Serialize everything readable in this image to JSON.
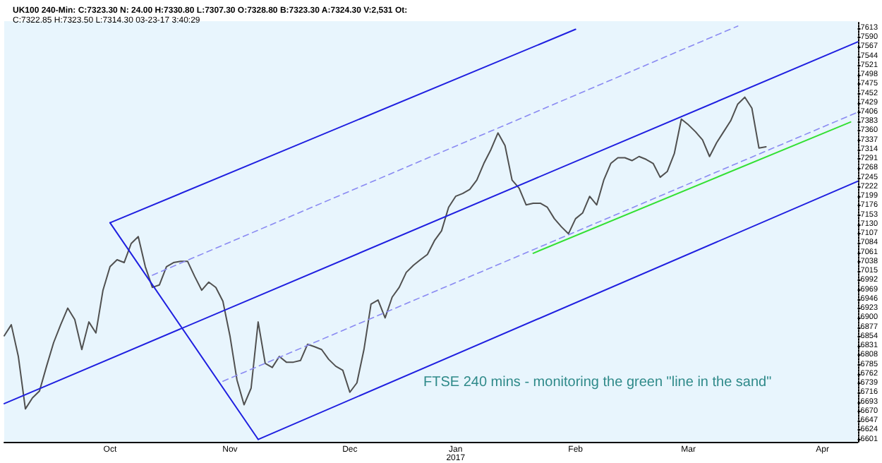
{
  "chart_data": {
    "type": "line",
    "title": "UK100 240-Min: C:7323.30 N: 24.00 H:7330.80 L:7307.30 O:7328.80 B:7323.30 A:7324.30 V:2,531 Ot:",
    "subtitle": "C:7322.85 H:7323.50 L:7314.30 03-23-17 3:40:29",
    "annotations": [
      "FTSE 240 mins - monitoring the green \"line in the sand\""
    ],
    "categories": [
      null,
      null,
      null,
      null,
      null,
      null,
      null,
      null,
      null,
      null,
      null,
      null,
      null,
      null,
      null,
      "Oct",
      null,
      null,
      null,
      null,
      null,
      null,
      null,
      null,
      null,
      null,
      null,
      null,
      null,
      null,
      null,
      null,
      "Nov",
      null,
      null,
      null,
      null,
      null,
      null,
      null,
      null,
      null,
      null,
      null,
      null,
      null,
      null,
      null,
      null,
      "Dec",
      null,
      null,
      null,
      null,
      null,
      null,
      null,
      null,
      null,
      null,
      null,
      null,
      null,
      null,
      "Jan\n2017",
      null,
      null,
      null,
      null,
      null,
      null,
      null,
      null,
      null,
      null,
      null,
      null,
      null,
      null,
      null,
      null,
      "Feb",
      null,
      null,
      null,
      null,
      null,
      null,
      null,
      null,
      null,
      null,
      null,
      null,
      null,
      null,
      null,
      "Mar",
      null,
      null,
      null,
      null,
      null,
      null,
      null,
      null,
      null,
      null,
      null,
      null,
      null,
      null,
      null,
      null,
      null,
      null,
      "Apr",
      null,
      null,
      null,
      null,
      null
    ],
    "series": [
      {
        "color": "#505050",
        "values": [
          6856,
          6883,
          6805,
          6676,
          6703,
          6720,
          6781,
          6839,
          6883,
          6924,
          6896,
          6822,
          6890,
          6863,
          6968,
          7026,
          7043,
          7036,
          7083,
          7100,
          7026,
          6975,
          6981,
          7026,
          7036,
          7039,
          7039,
          7002,
          6968,
          6988,
          6975,
          6941,
          6856,
          6747,
          6686,
          6727,
          6890,
          6788,
          6778,
          6805,
          6791,
          6791,
          6795,
          6835,
          6829,
          6822,
          6798,
          6781,
          6771,
          6717,
          6740,
          6822,
          6934,
          6944,
          6900,
          6951,
          6975,
          7012,
          7029,
          7043,
          7056,
          7090,
          7114,
          7172,
          7199,
          7206,
          7216,
          7239,
          7280,
          7314,
          7355,
          7324,
          7239,
          7219,
          7178,
          7182,
          7182,
          7172,
          7144,
          7124,
          7107,
          7144,
          7158,
          7199,
          7178,
          7239,
          7280,
          7294,
          7294,
          7287,
          7297,
          7290,
          7280,
          7246,
          7260,
          7304,
          7389,
          7375,
          7358,
          7338,
          7297,
          7331,
          7358,
          7385,
          7426,
          7443,
          7416,
          7318,
          7321,
          null,
          null,
          null,
          null,
          null,
          null,
          null,
          null,
          null,
          null,
          null,
          null,
          null
        ]
      },
      {
        "color": "#1f1fe0",
        "values": [
          null,
          null,
          null,
          null,
          null,
          null,
          null,
          null,
          null,
          null,
          null,
          null,
          null,
          null,
          null,
          7134,
          null,
          null,
          null,
          null,
          null,
          null,
          null,
          null,
          null,
          null,
          null,
          null,
          null,
          null,
          null,
          null,
          null,
          null,
          null,
          null,
          null,
          null,
          null,
          null,
          null,
          null,
          null,
          null,
          null,
          null,
          null,
          null,
          null,
          null,
          null,
          null,
          null,
          null,
          null,
          null,
          null,
          null,
          null,
          null,
          null,
          null,
          null,
          null,
          null,
          null,
          null,
          null,
          null,
          null,
          null,
          null,
          null,
          null,
          null,
          null,
          null,
          null,
          null,
          null,
          null,
          7610,
          null,
          null,
          null,
          null,
          null,
          null,
          null,
          null,
          null,
          null,
          null,
          null,
          null,
          null,
          null,
          null,
          null,
          null,
          null,
          null,
          null,
          null,
          null,
          null,
          null,
          null,
          null,
          null,
          null,
          null,
          null,
          null,
          null,
          null,
          null,
          null,
          null,
          null,
          null,
          null
        ]
      },
      {
        "color": "#1f1fe0",
        "values": [
          6689,
          null,
          null,
          null,
          null,
          null,
          null,
          null,
          null,
          null,
          null,
          null,
          null,
          null,
          null,
          null,
          null,
          null,
          null,
          null,
          null,
          null,
          null,
          null,
          null,
          null,
          null,
          null,
          null,
          null,
          null,
          null,
          null,
          null,
          null,
          null,
          null,
          null,
          null,
          null,
          null,
          null,
          null,
          null,
          null,
          null,
          null,
          null,
          null,
          null,
          null,
          null,
          null,
          null,
          null,
          null,
          null,
          null,
          null,
          null,
          null,
          null,
          null,
          null,
          null,
          null,
          null,
          null,
          null,
          null,
          null,
          null,
          null,
          null,
          null,
          null,
          null,
          null,
          null,
          null,
          null,
          null,
          null,
          null,
          null,
          null,
          null,
          null,
          null,
          null,
          null,
          null,
          null,
          null,
          null,
          null,
          null,
          null,
          null,
          null,
          null,
          null,
          null,
          null,
          null,
          null,
          null,
          null,
          null,
          null,
          null,
          null,
          null,
          null,
          null,
          null,
          null,
          null,
          null,
          null,
          null,
          7579
        ]
      },
      {
        "color": "#1f1fe0",
        "values": [
          null,
          null,
          null,
          null,
          null,
          null,
          null,
          null,
          null,
          null,
          null,
          null,
          null,
          null,
          null,
          7134,
          null,
          null,
          null,
          null,
          null,
          null,
          null,
          null,
          null,
          null,
          null,
          null,
          null,
          null,
          null,
          null,
          null,
          null,
          null,
          null,
          6601,
          null,
          null,
          null,
          null,
          null,
          null,
          null,
          null,
          null,
          null,
          null,
          null,
          null,
          null,
          null,
          null,
          null,
          null,
          null,
          null,
          null,
          null,
          null,
          null,
          null,
          null,
          null,
          null,
          null,
          null,
          null,
          null,
          null,
          null,
          null,
          null,
          null,
          null,
          null,
          null,
          null,
          null,
          null,
          null,
          null,
          null,
          null,
          null,
          null,
          null,
          null,
          null,
          null,
          null,
          null,
          null,
          null,
          null,
          null,
          null,
          null,
          null,
          null,
          null,
          null,
          null,
          null,
          null,
          null,
          null,
          null,
          null,
          null,
          null,
          null,
          null,
          null,
          null,
          null,
          null,
          null,
          null,
          null,
          null,
          null
        ]
      },
      {
        "color": "#1f1fe0",
        "values": [
          null,
          null,
          null,
          null,
          null,
          null,
          null,
          null,
          null,
          null,
          null,
          null,
          null,
          null,
          null,
          null,
          null,
          null,
          null,
          null,
          null,
          null,
          null,
          null,
          null,
          null,
          null,
          null,
          null,
          null,
          null,
          null,
          null,
          null,
          null,
          null,
          6601,
          null,
          null,
          null,
          null,
          null,
          null,
          null,
          null,
          null,
          null,
          null,
          null,
          null,
          null,
          null,
          null,
          null,
          null,
          null,
          null,
          null,
          null,
          null,
          null,
          null,
          null,
          null,
          null,
          null,
          null,
          null,
          null,
          null,
          null,
          null,
          null,
          null,
          null,
          null,
          null,
          null,
          null,
          null,
          null,
          null,
          null,
          null,
          null,
          null,
          null,
          null,
          null,
          null,
          null,
          null,
          null,
          null,
          null,
          null,
          null,
          null,
          null,
          null,
          null,
          null,
          null,
          null,
          null,
          null,
          null,
          null,
          null,
          null,
          null,
          null,
          null,
          null,
          null,
          null,
          null,
          null,
          null,
          null,
          null,
          7236
        ]
      },
      {
        "color": "#8a8af2",
        "line_style": "dashed",
        "values": [
          null,
          null,
          null,
          null,
          null,
          null,
          null,
          null,
          null,
          null,
          null,
          null,
          null,
          null,
          null,
          null,
          null,
          null,
          null,
          null,
          null,
          7005,
          null,
          null,
          null,
          null,
          null,
          null,
          null,
          null,
          null,
          null,
          null,
          null,
          null,
          null,
          null,
          null,
          null,
          null,
          null,
          null,
          null,
          null,
          null,
          null,
          null,
          null,
          null,
          null,
          null,
          null,
          null,
          null,
          null,
          null,
          null,
          null,
          null,
          null,
          null,
          null,
          null,
          null,
          null,
          null,
          null,
          null,
          null,
          null,
          null,
          null,
          null,
          null,
          null,
          null,
          null,
          null,
          null,
          null,
          null,
          null,
          null,
          null,
          null,
          null,
          null,
          null,
          null,
          null,
          null,
          null,
          null,
          null,
          null,
          null,
          null,
          null,
          null,
          null,
          null,
          null,
          null,
          null,
          7618,
          null,
          null,
          null,
          null,
          null,
          null,
          null,
          null,
          null,
          null,
          null,
          null,
          null,
          null,
          null,
          null,
          null
        ]
      },
      {
        "color": "#8a8af2",
        "line_style": "dashed",
        "values": [
          null,
          null,
          null,
          null,
          null,
          null,
          null,
          null,
          null,
          null,
          null,
          null,
          null,
          null,
          null,
          null,
          null,
          null,
          null,
          null,
          null,
          null,
          null,
          null,
          null,
          null,
          null,
          null,
          null,
          null,
          null,
          6744,
          null,
          null,
          null,
          null,
          null,
          null,
          null,
          null,
          null,
          null,
          null,
          null,
          null,
          null,
          null,
          null,
          null,
          null,
          null,
          null,
          null,
          null,
          null,
          null,
          null,
          null,
          null,
          null,
          null,
          null,
          null,
          null,
          null,
          null,
          null,
          null,
          null,
          null,
          null,
          null,
          null,
          null,
          null,
          null,
          null,
          null,
          null,
          null,
          null,
          null,
          null,
          null,
          null,
          null,
          null,
          null,
          null,
          null,
          null,
          null,
          null,
          null,
          null,
          null,
          null,
          null,
          null,
          null,
          null,
          null,
          null,
          null,
          null,
          null,
          null,
          null,
          null,
          null,
          null,
          null,
          null,
          null,
          null,
          null,
          null,
          null,
          null,
          null,
          null,
          7406
        ]
      },
      {
        "color": "#33e033",
        "values": [
          null,
          null,
          null,
          null,
          null,
          null,
          null,
          null,
          null,
          null,
          null,
          null,
          null,
          null,
          null,
          null,
          null,
          null,
          null,
          null,
          null,
          null,
          null,
          null,
          null,
          null,
          null,
          null,
          null,
          null,
          null,
          null,
          null,
          null,
          null,
          null,
          null,
          null,
          null,
          null,
          null,
          null,
          null,
          null,
          null,
          null,
          null,
          null,
          null,
          null,
          null,
          null,
          null,
          null,
          null,
          null,
          null,
          null,
          null,
          null,
          null,
          null,
          null,
          null,
          null,
          null,
          null,
          null,
          null,
          null,
          null,
          null,
          null,
          null,
          null,
          7059,
          null,
          null,
          null,
          null,
          null,
          null,
          null,
          null,
          null,
          null,
          null,
          null,
          null,
          null,
          null,
          null,
          null,
          null,
          null,
          null,
          null,
          null,
          null,
          null,
          null,
          null,
          null,
          null,
          null,
          null,
          null,
          null,
          null,
          null,
          null,
          null,
          null,
          null,
          null,
          null,
          null,
          null,
          null,
          null,
          7382,
          null
        ]
      }
    ],
    "ylim": [
      6595,
      7630
    ],
    "yticks": [
      6601,
      6624,
      6647,
      6670,
      6693,
      6716,
      6739,
      6762,
      6785,
      6808,
      6831,
      6854,
      6877,
      6900,
      6923,
      6946,
      6969,
      6992,
      7015,
      7038,
      7061,
      7084,
      7107,
      7130,
      7153,
      7176,
      7199,
      7222,
      7245,
      7268,
      7291,
      7314,
      7337,
      7360,
      7383,
      7406,
      7429,
      7452,
      7475,
      7498,
      7521,
      7544,
      7567,
      7590,
      7613
    ],
    "grid": false,
    "marker": "none",
    "line_style": "solid"
  }
}
